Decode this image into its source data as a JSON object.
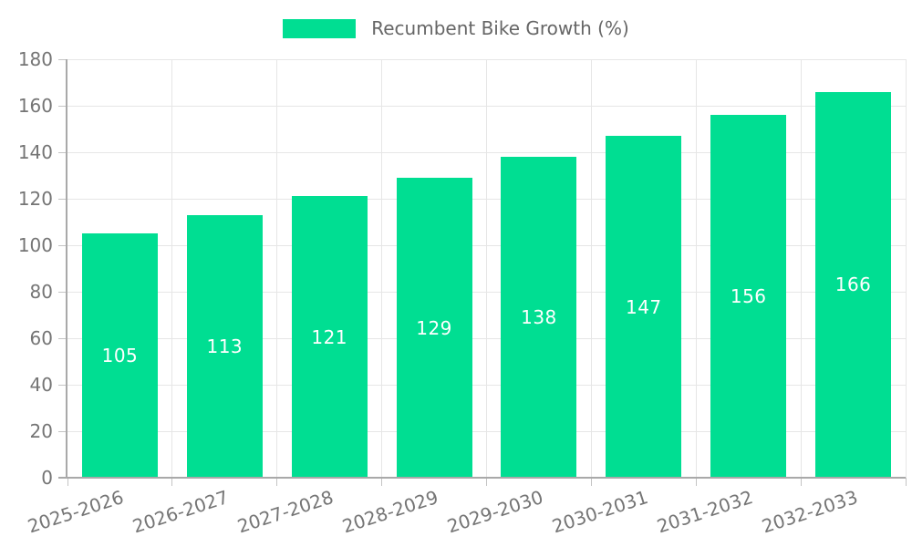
{
  "chart_data": {
    "type": "bar",
    "title": "",
    "legend": {
      "label": "Recumbent Bike Growth (%)",
      "position": "top-center"
    },
    "categories": [
      "2025-2026",
      "2026-2027",
      "2027-2028",
      "2028-2029",
      "2029-2030",
      "2030-2031",
      "2031-2032",
      "2032-2033"
    ],
    "series": [
      {
        "name": "Recumbent Bike Growth (%)",
        "values": [
          105,
          113,
          121,
          129,
          138,
          147,
          156,
          166
        ]
      }
    ],
    "value_labels": {
      "shown": true,
      "position": "center-of-bar"
    },
    "xlabel": "",
    "ylabel": "",
    "ylim": [
      0,
      180
    ],
    "yticks": [
      0,
      20,
      40,
      60,
      80,
      100,
      120,
      140,
      160,
      180
    ],
    "grid": true,
    "colors": {
      "bar": "#00DE92",
      "grid": "#E6E6E6",
      "axis": "#A9A9A9",
      "tick": "#C4C4C4",
      "axis_text": "#757575",
      "value_text": "#FFFFFF",
      "legend_text": "#666666",
      "background": "#FFFFFF"
    }
  }
}
